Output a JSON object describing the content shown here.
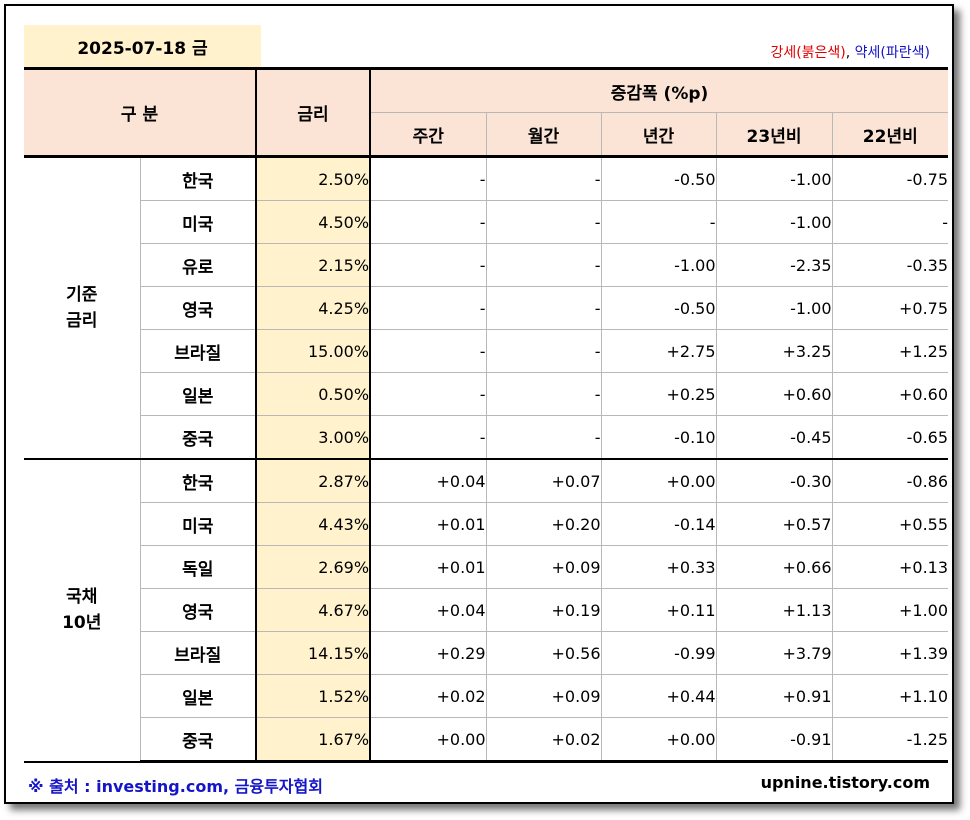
{
  "header": {
    "date": "2025-07-18 금",
    "legend_strong": "강세(붉은색)",
    "legend_sep": ", ",
    "legend_weak": "약세(파란색)"
  },
  "columns": {
    "gubun": "구 분",
    "rate": "금리",
    "change_group": "증감폭 (%p)",
    "weekly": "주간",
    "monthly": "월간",
    "yearly": "년간",
    "vs23": "23년비",
    "vs22": "22년비"
  },
  "groups": [
    {
      "label_line1": "기준",
      "label_line2": "금리",
      "rows": [
        {
          "country": "한국",
          "rate": "2.50%",
          "weekly": "-",
          "monthly": "-",
          "yearly": "-0.50",
          "vs23": "-1.00",
          "vs22": "-0.75"
        },
        {
          "country": "미국",
          "rate": "4.50%",
          "weekly": "-",
          "monthly": "-",
          "yearly": "-",
          "vs23": "-1.00",
          "vs22": "-"
        },
        {
          "country": "유로",
          "rate": "2.15%",
          "weekly": "-",
          "monthly": "-",
          "yearly": "-1.00",
          "vs23": "-2.35",
          "vs22": "-0.35"
        },
        {
          "country": "영국",
          "rate": "4.25%",
          "weekly": "-",
          "monthly": "-",
          "yearly": "-0.50",
          "vs23": "-1.00",
          "vs22": "+0.75"
        },
        {
          "country": "브라질",
          "rate": "15.00%",
          "weekly": "-",
          "monthly": "-",
          "yearly": "+2.75",
          "vs23": "+3.25",
          "vs22": "+1.25"
        },
        {
          "country": "일본",
          "rate": "0.50%",
          "weekly": "-",
          "monthly": "-",
          "yearly": "+0.25",
          "vs23": "+0.60",
          "vs22": "+0.60"
        },
        {
          "country": "중국",
          "rate": "3.00%",
          "weekly": "-",
          "monthly": "-",
          "yearly": "-0.10",
          "vs23": "-0.45",
          "vs22": "-0.65"
        }
      ]
    },
    {
      "label_line1": "국채",
      "label_line2": "10년",
      "rows": [
        {
          "country": "한국",
          "rate": "2.87%",
          "weekly": "+0.04",
          "monthly": "+0.07",
          "yearly": "+0.00",
          "vs23": "-0.30",
          "vs22": "-0.86"
        },
        {
          "country": "미국",
          "rate": "4.43%",
          "weekly": "+0.01",
          "monthly": "+0.20",
          "yearly": "-0.14",
          "vs23": "+0.57",
          "vs22": "+0.55"
        },
        {
          "country": "독일",
          "rate": "2.69%",
          "weekly": "+0.01",
          "monthly": "+0.09",
          "yearly": "+0.33",
          "vs23": "+0.66",
          "vs22": "+0.13"
        },
        {
          "country": "영국",
          "rate": "4.67%",
          "weekly": "+0.04",
          "monthly": "+0.19",
          "yearly": "+0.11",
          "vs23": "+1.13",
          "vs22": "+1.00"
        },
        {
          "country": "브라질",
          "rate": "14.15%",
          "weekly": "+0.29",
          "monthly": "+0.56",
          "yearly": "-0.99",
          "vs23": "+3.79",
          "vs22": "+1.39"
        },
        {
          "country": "일본",
          "rate": "1.52%",
          "weekly": "+0.02",
          "monthly": "+0.09",
          "yearly": "+0.44",
          "vs23": "+0.91",
          "vs22": "+1.10"
        },
        {
          "country": "중국",
          "rate": "1.67%",
          "weekly": "+0.00",
          "monthly": "+0.02",
          "yearly": "+0.00",
          "vs23": "-0.91",
          "vs22": "-1.25"
        }
      ]
    }
  ],
  "footer": {
    "source": "※ 출처 : investing.com, 금융투자협회",
    "site": "upnine.tistory.com"
  },
  "colors": {
    "strong_red": "#e00000",
    "weak_blue": "#1515c8",
    "header_bg": "#fbe4d6",
    "rate_bg": "#fff2cc"
  }
}
